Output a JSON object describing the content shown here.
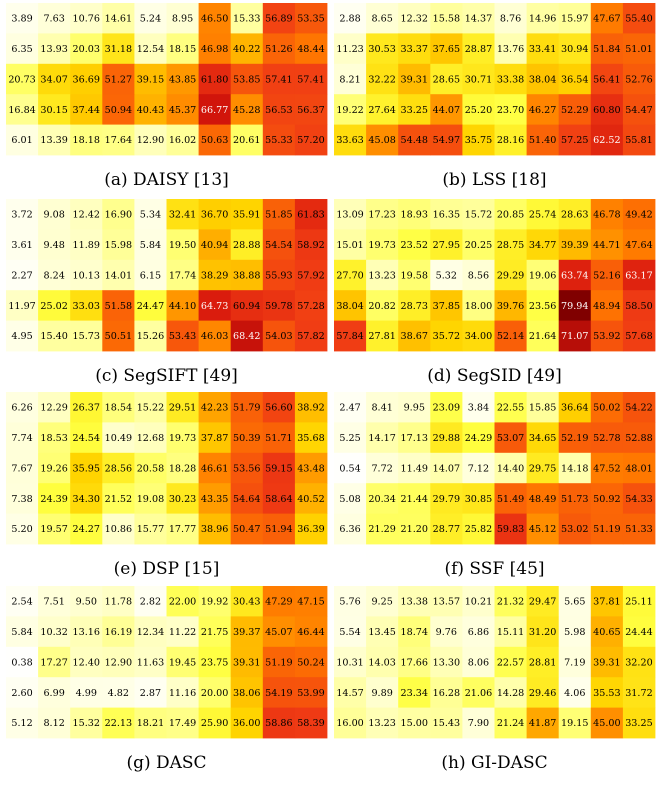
{
  "chart_data": [
    {
      "type": "heatmap",
      "caption": "(a) DAISY [13]",
      "rows": [
        [
          3.89,
          7.63,
          10.76,
          14.61,
          5.24,
          8.95,
          46.5,
          15.33,
          56.89,
          53.35
        ],
        [
          6.35,
          13.93,
          20.03,
          31.18,
          12.54,
          18.15,
          46.98,
          40.22,
          51.26,
          48.44
        ],
        [
          20.73,
          34.07,
          36.69,
          51.27,
          39.15,
          43.85,
          61.8,
          53.85,
          57.41,
          57.41
        ],
        [
          16.84,
          30.15,
          37.44,
          50.94,
          40.43,
          45.37,
          66.77,
          45.28,
          56.53,
          56.37
        ],
        [
          6.01,
          13.39,
          18.18,
          17.64,
          12.9,
          16.02,
          50.63,
          20.61,
          55.33,
          57.2
        ]
      ]
    },
    {
      "type": "heatmap",
      "caption": "(b) LSS [18]",
      "rows": [
        [
          2.88,
          8.65,
          12.32,
          15.58,
          14.37,
          8.76,
          14.96,
          15.97,
          47.67,
          55.4
        ],
        [
          11.23,
          30.53,
          33.37,
          37.65,
          28.87,
          13.76,
          33.41,
          30.94,
          51.84,
          51.01
        ],
        [
          8.21,
          32.22,
          39.31,
          28.65,
          30.71,
          33.38,
          38.04,
          36.54,
          56.41,
          52.76
        ],
        [
          19.22,
          27.64,
          33.25,
          44.07,
          25.2,
          23.7,
          46.27,
          52.29,
          60.8,
          54.47
        ],
        [
          33.63,
          45.08,
          54.48,
          54.97,
          35.75,
          28.16,
          51.4,
          57.25,
          62.52,
          55.81
        ]
      ]
    },
    {
      "type": "heatmap",
      "caption": "(c) SegSIFT [49]",
      "rows": [
        [
          3.72,
          9.08,
          12.42,
          16.9,
          5.34,
          32.41,
          36.7,
          35.91,
          51.85,
          61.83
        ],
        [
          3.61,
          9.48,
          11.89,
          15.98,
          5.84,
          19.5,
          40.94,
          28.88,
          54.54,
          58.92
        ],
        [
          2.27,
          8.24,
          10.13,
          14.01,
          6.15,
          17.74,
          38.29,
          38.88,
          55.93,
          57.92
        ],
        [
          11.97,
          25.02,
          33.03,
          51.58,
          24.47,
          44.1,
          64.73,
          60.94,
          59.78,
          57.28
        ],
        [
          4.95,
          15.4,
          15.73,
          50.51,
          15.26,
          53.43,
          46.03,
          68.42,
          54.03,
          57.82
        ]
      ]
    },
    {
      "type": "heatmap",
      "caption": "(d) SegSID [49]",
      "rows": [
        [
          13.09,
          17.23,
          18.93,
          16.35,
          15.72,
          20.85,
          25.74,
          28.63,
          46.78,
          49.42
        ],
        [
          15.01,
          19.73,
          23.52,
          27.95,
          20.25,
          28.75,
          34.77,
          39.39,
          44.71,
          47.64
        ],
        [
          27.7,
          13.23,
          19.58,
          5.32,
          8.56,
          29.29,
          19.06,
          63.74,
          52.16,
          63.17
        ],
        [
          38.04,
          20.82,
          28.73,
          37.85,
          18.0,
          39.76,
          23.56,
          79.94,
          48.94,
          58.5
        ],
        [
          57.84,
          27.81,
          38.67,
          35.72,
          34.0,
          52.14,
          21.64,
          71.07,
          53.92,
          57.68
        ]
      ]
    },
    {
      "type": "heatmap",
      "caption": "(e) DSP [15]",
      "rows": [
        [
          6.26,
          12.29,
          26.37,
          18.54,
          15.22,
          29.51,
          42.23,
          51.79,
          56.6,
          38.92
        ],
        [
          7.74,
          18.53,
          24.54,
          10.49,
          12.68,
          19.73,
          37.87,
          50.39,
          51.71,
          35.68
        ],
        [
          7.67,
          19.26,
          35.95,
          28.56,
          20.58,
          18.28,
          46.61,
          53.56,
          59.15,
          43.48
        ],
        [
          7.38,
          24.39,
          34.3,
          21.52,
          19.08,
          30.23,
          43.35,
          54.64,
          58.64,
          40.52
        ],
        [
          5.2,
          19.57,
          24.27,
          10.86,
          15.77,
          17.77,
          38.96,
          50.47,
          51.94,
          36.39
        ]
      ]
    },
    {
      "type": "heatmap",
      "caption": "(f) SSF [45]",
      "rows": [
        [
          2.47,
          8.41,
          9.95,
          23.09,
          3.84,
          22.55,
          15.85,
          36.64,
          50.02,
          54.22
        ],
        [
          5.25,
          14.17,
          17.13,
          29.88,
          24.29,
          53.07,
          34.65,
          52.19,
          52.78,
          52.88
        ],
        [
          0.54,
          7.72,
          11.49,
          14.07,
          7.12,
          14.4,
          29.75,
          14.18,
          47.52,
          48.01
        ],
        [
          5.08,
          20.34,
          21.44,
          29.79,
          30.85,
          51.49,
          48.49,
          51.73,
          50.92,
          54.33
        ],
        [
          6.36,
          21.29,
          21.2,
          28.77,
          25.82,
          59.83,
          45.12,
          53.02,
          51.19,
          51.33
        ]
      ]
    },
    {
      "type": "heatmap",
      "caption": "(g) DASC",
      "rows": [
        [
          2.54,
          7.51,
          9.5,
          11.78,
          2.82,
          22.0,
          19.92,
          30.43,
          47.29,
          47.15
        ],
        [
          5.84,
          10.32,
          13.16,
          16.19,
          12.34,
          11.22,
          21.75,
          39.37,
          45.07,
          46.44
        ],
        [
          0.38,
          17.27,
          12.4,
          12.9,
          11.63,
          19.45,
          23.75,
          39.31,
          51.19,
          50.24
        ],
        [
          2.6,
          6.99,
          4.99,
          4.82,
          2.87,
          11.16,
          20.0,
          38.06,
          54.19,
          53.99
        ],
        [
          5.12,
          8.12,
          15.32,
          22.13,
          18.21,
          17.49,
          25.9,
          36.0,
          58.86,
          58.39
        ]
      ]
    },
    {
      "type": "heatmap",
      "caption": "(h) GI-DASC",
      "rows": [
        [
          5.76,
          9.25,
          13.38,
          13.57,
          10.21,
          21.32,
          29.47,
          5.65,
          37.81,
          25.11
        ],
        [
          5.54,
          13.45,
          18.74,
          9.76,
          6.86,
          15.11,
          31.2,
          5.98,
          40.65,
          24.44
        ],
        [
          10.31,
          14.03,
          17.66,
          13.3,
          8.06,
          22.57,
          28.81,
          7.19,
          39.31,
          32.2
        ],
        [
          14.57,
          9.89,
          23.34,
          16.28,
          21.06,
          14.28,
          29.46,
          4.06,
          35.53,
          31.72
        ],
        [
          16.0,
          13.23,
          15.0,
          15.43,
          7.9,
          21.24,
          41.87,
          19.15,
          45.0,
          33.25
        ]
      ]
    }
  ]
}
